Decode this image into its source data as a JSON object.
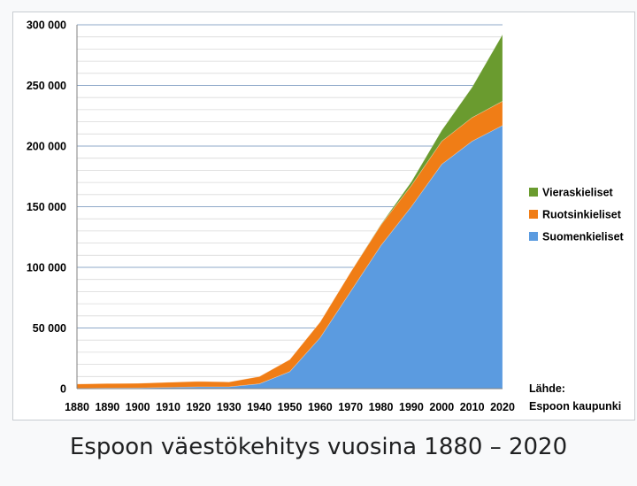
{
  "caption": "Espoon väestökehitys vuosina 1880 – 2020",
  "source": {
    "line1": "Lähde:",
    "line2": "Espoon kaupunki"
  },
  "chart_data": {
    "type": "area",
    "stacked": true,
    "x": [
      1880,
      1890,
      1900,
      1910,
      1920,
      1930,
      1940,
      1950,
      1960,
      1970,
      1980,
      1990,
      2000,
      2010,
      2020
    ],
    "series": [
      {
        "name": "Suomenkieliset",
        "color": "#5b9be0",
        "values": [
          300,
          500,
          600,
          1000,
          1500,
          1500,
          4000,
          14000,
          42000,
          80000,
          118000,
          150000,
          185000,
          204000,
          217000
        ]
      },
      {
        "name": "Ruotsinkieliset",
        "color": "#f07d16",
        "values": [
          3500,
          3700,
          3800,
          4200,
          4500,
          4000,
          6000,
          10000,
          13000,
          16000,
          17000,
          17500,
          19000,
          19500,
          20000
        ]
      },
      {
        "name": "Vieraskieliset",
        "color": "#6a9b2f",
        "values": [
          0,
          0,
          0,
          0,
          0,
          0,
          0,
          0,
          0,
          0,
          500,
          3000,
          9000,
          25000,
          55000
        ]
      }
    ],
    "xticks": [
      "1880",
      "1890",
      "1900",
      "1910",
      "1920",
      "1930",
      "1940",
      "1950",
      "1960",
      "1970",
      "1980",
      "1990",
      "2000",
      "2010",
      "2020"
    ],
    "yticks": [
      {
        "value": 0,
        "label": "0"
      },
      {
        "value": 50000,
        "label": "50 000"
      },
      {
        "value": 100000,
        "label": "100 000"
      },
      {
        "value": 150000,
        "label": "150 000"
      },
      {
        "value": 200000,
        "label": "200 000"
      },
      {
        "value": 250000,
        "label": "250 000"
      },
      {
        "value": 300000,
        "label": "300 000"
      }
    ],
    "ylim": [
      0,
      300000
    ],
    "minor_gridlines": true,
    "legend_position": "right",
    "legend_order": [
      "Vieraskieliset",
      "Ruotsinkieliset",
      "Suomenkieliset"
    ]
  }
}
